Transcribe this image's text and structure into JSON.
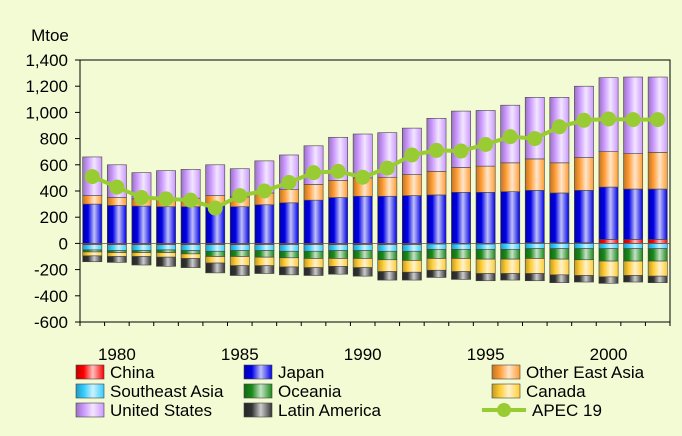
{
  "chart_data": {
    "type": "bar",
    "title": "",
    "ylabel": "Mtoe",
    "xlabel": "",
    "ylim": [
      -600,
      1400
    ],
    "yticks": [
      -600,
      -400,
      -200,
      0,
      200,
      400,
      600,
      800,
      1000,
      1200,
      1400
    ],
    "xtick_labels": [
      "1980",
      "1985",
      "1990",
      "1995",
      "2000"
    ],
    "grid": false,
    "legend_position": "bottom",
    "categories": [
      1979,
      1980,
      1981,
      1982,
      1983,
      1984,
      1985,
      1986,
      1987,
      1988,
      1989,
      1990,
      1991,
      1992,
      1993,
      1994,
      1995,
      1996,
      1997,
      1998,
      1999,
      2000,
      2001,
      2002
    ],
    "series": [
      {
        "name": "China",
        "color": "#ff0000",
        "values": [
          -10,
          -10,
          -10,
          -10,
          -10,
          -10,
          -10,
          -10,
          -10,
          -10,
          -10,
          -10,
          -10,
          -10,
          -5,
          -5,
          -5,
          0,
          5,
          5,
          5,
          30,
          30,
          30
        ]
      },
      {
        "name": "Japan",
        "color": "#0000e6",
        "values": [
          300,
          290,
          285,
          280,
          280,
          285,
          280,
          295,
          310,
          330,
          350,
          360,
          360,
          365,
          370,
          390,
          390,
          395,
          400,
          380,
          400,
          400,
          385,
          385
        ]
      },
      {
        "name": "Other East Asia",
        "color": "#ff9c33",
        "values": [
          65,
          60,
          55,
          60,
          65,
          80,
          75,
          90,
          100,
          120,
          130,
          140,
          145,
          160,
          180,
          190,
          200,
          220,
          240,
          230,
          250,
          270,
          270,
          280
        ]
      },
      {
        "name": "Southeast Asia",
        "color": "#33ccff",
        "values": [
          -40,
          -45,
          -45,
          -40,
          -45,
          -50,
          -45,
          -45,
          -50,
          -50,
          -45,
          -45,
          -50,
          -50,
          -40,
          -40,
          -40,
          -45,
          -40,
          -40,
          -40,
          -40,
          -40,
          -40
        ]
      },
      {
        "name": "Oceania",
        "color": "#1a8a1a",
        "values": [
          -15,
          -15,
          -15,
          -20,
          -25,
          -40,
          -45,
          -50,
          -50,
          -55,
          -60,
          -60,
          -65,
          -70,
          -70,
          -70,
          -75,
          -75,
          -75,
          -80,
          -85,
          -95,
          -95,
          -95
        ]
      },
      {
        "name": "Canada",
        "color": "#ffcc33",
        "values": [
          -30,
          -30,
          -30,
          -35,
          -35,
          -50,
          -70,
          -65,
          -70,
          -70,
          -60,
          -70,
          -90,
          -90,
          -90,
          -100,
          -110,
          -110,
          -115,
          -120,
          -120,
          -120,
          -110,
          -115
        ]
      },
      {
        "name": "United States",
        "color": "#cc99ff",
        "values": [
          295,
          250,
          200,
          215,
          220,
          235,
          215,
          245,
          265,
          295,
          330,
          335,
          340,
          355,
          405,
          430,
          425,
          440,
          470,
          500,
          545,
          565,
          585,
          575
        ]
      },
      {
        "name": "Latin America",
        "color": "#333333",
        "values": [
          -45,
          -45,
          -65,
          -70,
          -70,
          -75,
          -75,
          -60,
          -60,
          -60,
          -60,
          -65,
          -65,
          -60,
          -55,
          -60,
          -55,
          -50,
          -55,
          -60,
          -50,
          -50,
          -50,
          -50
        ]
      },
      {
        "name": "APEC 19",
        "color": "#99cc33",
        "type": "line",
        "values": [
          510,
          430,
          350,
          340,
          330,
          270,
          365,
          400,
          465,
          540,
          550,
          505,
          575,
          675,
          710,
          705,
          755,
          815,
          800,
          890,
          940,
          950,
          945,
          945
        ]
      }
    ]
  }
}
